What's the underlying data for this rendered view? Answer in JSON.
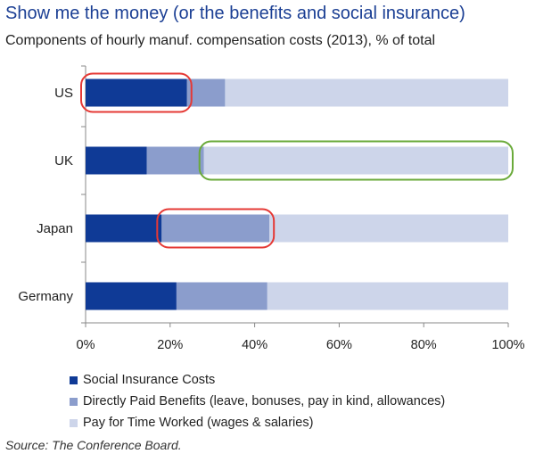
{
  "title": "Show me the money (or the benefits and social insurance)",
  "subtitle": "Components of hourly manuf. compensation costs (2013), % of total",
  "source": "Source: The Conference Board.",
  "colors": {
    "social": "#0f3a96",
    "benefits": "#8b9dcc",
    "pay": "#cdd5ea",
    "highlight_red": "#e53935",
    "highlight_green": "#6aaa3a",
    "axis": "#888888"
  },
  "chart_data": {
    "type": "bar",
    "orientation": "horizontal",
    "stacked": true,
    "categories": [
      "US",
      "UK",
      "Japan",
      "Germany"
    ],
    "series": [
      {
        "name": "Social Insurance Costs",
        "color": "#0f3a96",
        "values": [
          24,
          14.5,
          18,
          21.5
        ]
      },
      {
        "name": "Directly Paid Benefits (leave, bonuses, pay in kind, allowances)",
        "color": "#8b9dcc",
        "values": [
          9,
          13.5,
          25.5,
          21.5
        ]
      },
      {
        "name": "Pay for Time Worked (wages & salaries)",
        "color": "#cdd5ea",
        "values": [
          67,
          72,
          56.5,
          57
        ]
      }
    ],
    "xlim": [
      0,
      100
    ],
    "x_ticks": [
      "0%",
      "20%",
      "40%",
      "60%",
      "80%",
      "100%"
    ],
    "x_tick_values": [
      0,
      20,
      40,
      60,
      80,
      100
    ],
    "grid": false,
    "legend_position": "bottom-left",
    "highlights": [
      {
        "category": "US",
        "from": 0,
        "to": 24,
        "color": "red"
      },
      {
        "category": "UK",
        "from": 28,
        "to": 100,
        "color": "green"
      },
      {
        "category": "Japan",
        "from": 18,
        "to": 43.5,
        "color": "red"
      }
    ]
  }
}
